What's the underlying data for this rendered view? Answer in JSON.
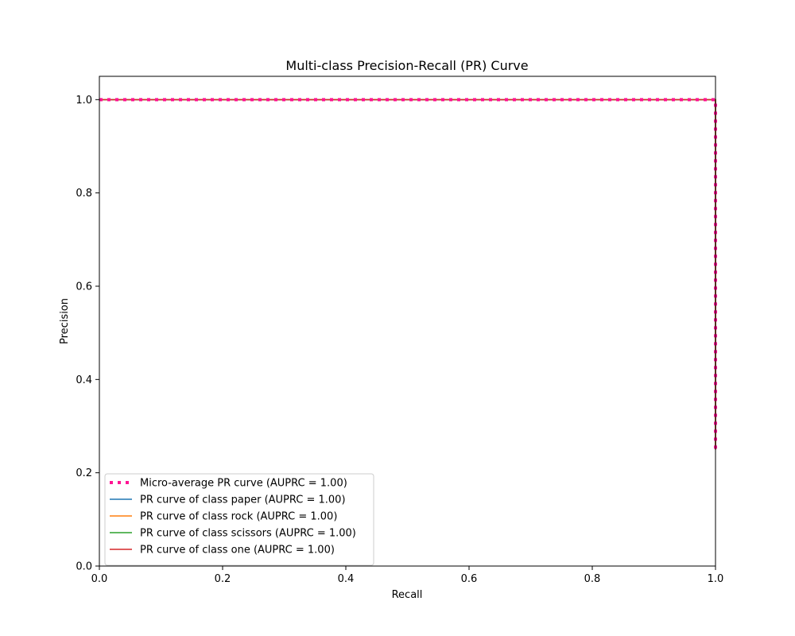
{
  "chart_data": {
    "type": "line",
    "title": "Multi-class Precision-Recall (PR) Curve",
    "xlabel": "Recall",
    "ylabel": "Precision",
    "xlim": [
      0.0,
      1.0
    ],
    "ylim": [
      0.0,
      1.05
    ],
    "xticks": [
      0.0,
      0.2,
      0.4,
      0.6,
      0.8,
      1.0
    ],
    "yticks": [
      0.0,
      0.2,
      0.4,
      0.6,
      0.8,
      1.0
    ],
    "xtick_labels": [
      "0.0",
      "0.2",
      "0.4",
      "0.6",
      "0.8",
      "1.0"
    ],
    "ytick_labels": [
      "0.0",
      "0.2",
      "0.4",
      "0.6",
      "0.8",
      "1.0"
    ],
    "grid": false,
    "legend_position": "lower-left",
    "series": [
      {
        "name": "PR curve of class paper (AUPRC = 1.00)",
        "color": "#1f77b4",
        "style": "solid",
        "points": [
          [
            0.0,
            1.0
          ],
          [
            1.0,
            1.0
          ],
          [
            1.0,
            0.25
          ]
        ]
      },
      {
        "name": "PR curve of class rock (AUPRC = 1.00)",
        "color": "#ff7f0e",
        "style": "solid",
        "points": [
          [
            0.0,
            1.0
          ],
          [
            1.0,
            1.0
          ],
          [
            1.0,
            0.25
          ]
        ]
      },
      {
        "name": "PR curve of class scissors (AUPRC = 1.00)",
        "color": "#2ca02c",
        "style": "solid",
        "points": [
          [
            0.0,
            1.0
          ],
          [
            1.0,
            1.0
          ],
          [
            1.0,
            0.25
          ]
        ]
      },
      {
        "name": "PR curve of class one (AUPRC = 1.00)",
        "color": "#d62728",
        "style": "solid",
        "points": [
          [
            0.0,
            1.0
          ],
          [
            1.0,
            1.0
          ],
          [
            1.0,
            0.25
          ]
        ]
      },
      {
        "name": "Micro-average PR curve (AUPRC = 1.00)",
        "color": "#ff1493",
        "style": "dotted",
        "points": [
          [
            0.0,
            1.0
          ],
          [
            1.0,
            1.0
          ],
          [
            1.0,
            0.25
          ]
        ]
      }
    ],
    "legend_order": [
      "Micro-average PR curve (AUPRC = 1.00)",
      "PR curve of class paper (AUPRC = 1.00)",
      "PR curve of class rock (AUPRC = 1.00)",
      "PR curve of class scissors (AUPRC = 1.00)",
      "PR curve of class one (AUPRC = 1.00)"
    ]
  }
}
